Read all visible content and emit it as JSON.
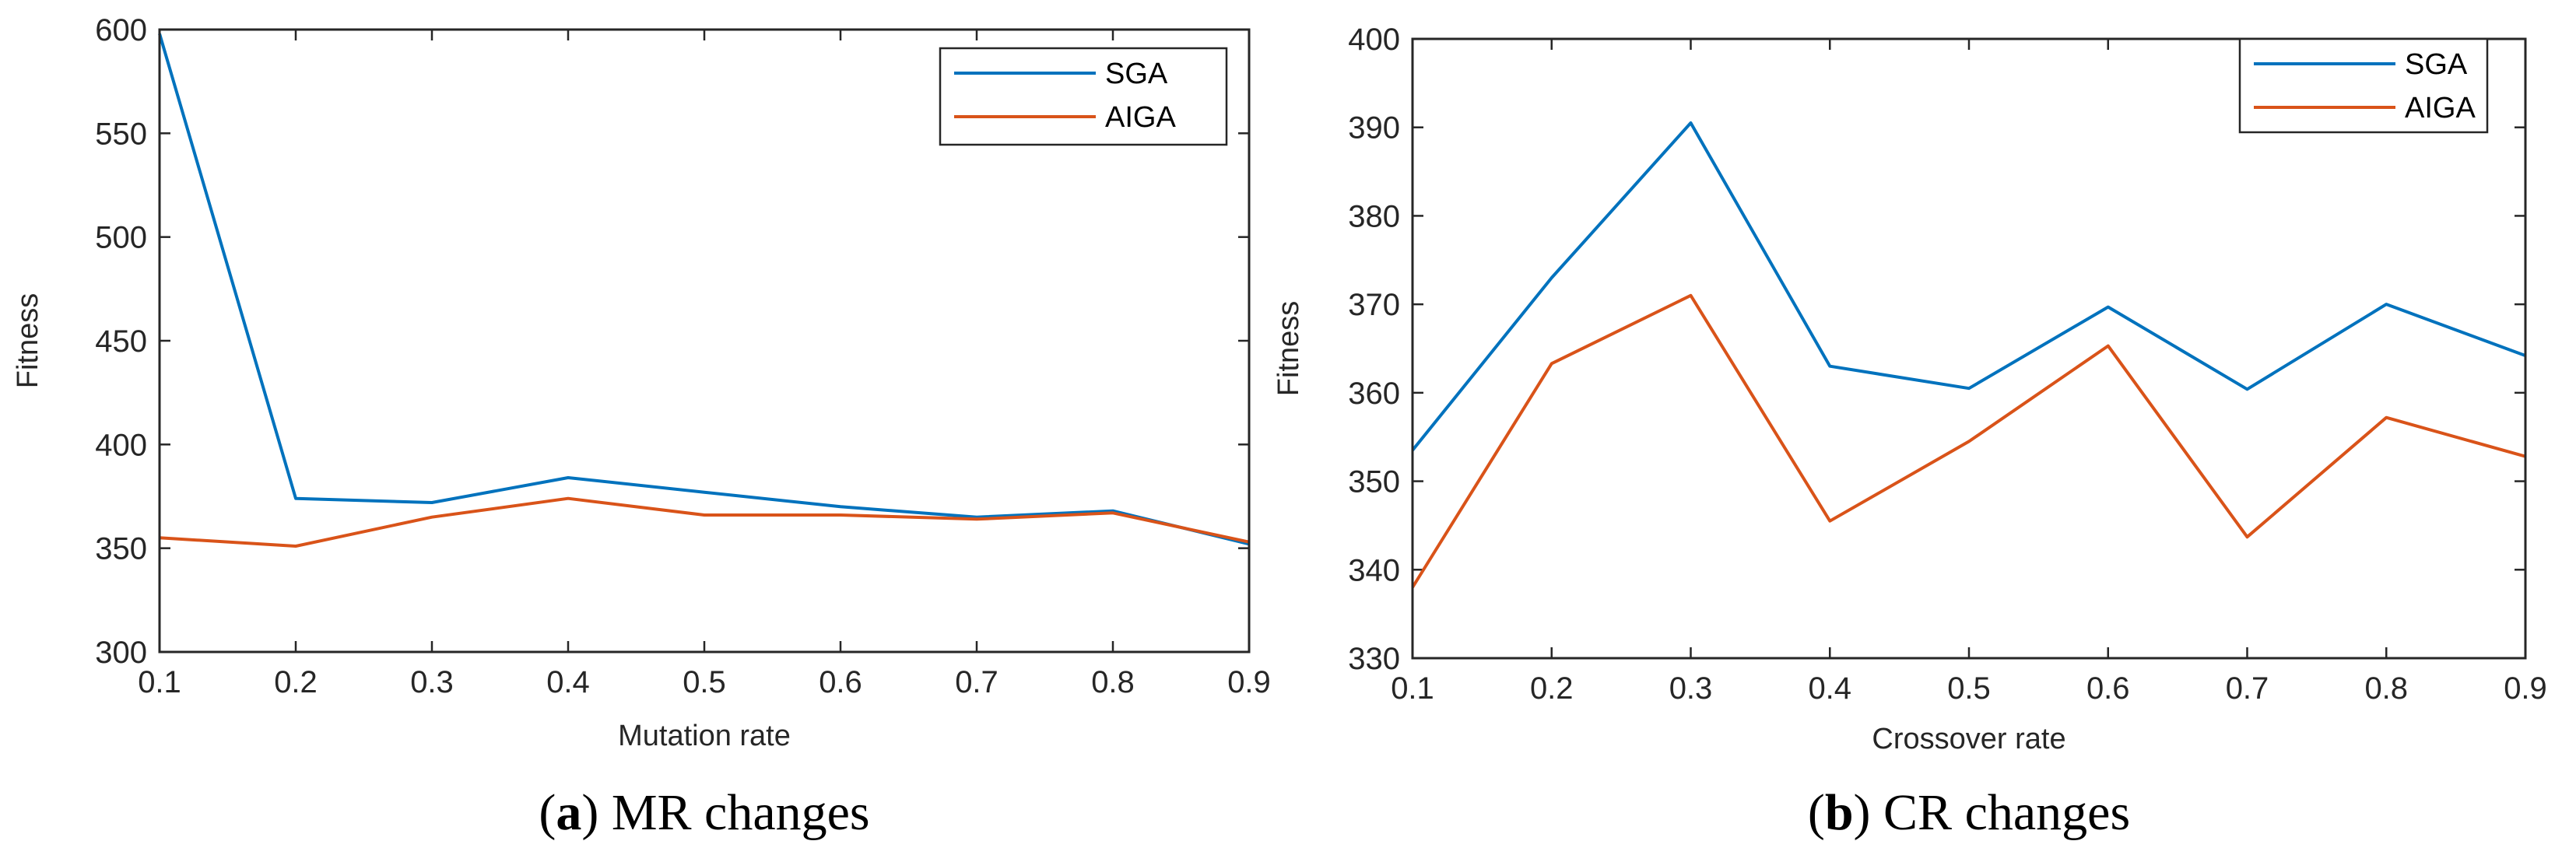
{
  "chart_data": [
    {
      "type": "line",
      "panel_id": "a",
      "caption_letter": "a",
      "caption_text": " MR changes",
      "xlabel": "Mutation rate",
      "ylabel": "Fitness",
      "xlim": [
        0.1,
        0.9
      ],
      "ylim": [
        300,
        600
      ],
      "x": [
        0.1,
        0.2,
        0.3,
        0.4,
        0.5,
        0.6,
        0.7,
        0.8,
        0.9
      ],
      "xticks": [
        "0.1",
        "0.2",
        "0.3",
        "0.4",
        "0.5",
        "0.6",
        "0.7",
        "0.8",
        "0.9"
      ],
      "yticks": [
        "300",
        "350",
        "400",
        "450",
        "500",
        "550",
        "600"
      ],
      "legend_position": "top-right",
      "series": [
        {
          "name": "SGA",
          "color": "#0072BD",
          "values": [
            598,
            374,
            372,
            384,
            377,
            370,
            365,
            368,
            352
          ]
        },
        {
          "name": "AIGA",
          "color": "#D95319",
          "values": [
            355,
            351,
            365,
            374,
            366,
            366,
            364,
            367,
            353
          ]
        }
      ]
    },
    {
      "type": "line",
      "panel_id": "b",
      "caption_letter": "b",
      "caption_text": " CR changes",
      "xlabel": "Crossover rate",
      "ylabel": "Fitness",
      "xlim": [
        0.1,
        0.9
      ],
      "ylim": [
        330,
        400
      ],
      "x": [
        0.1,
        0.2,
        0.3,
        0.4,
        0.5,
        0.6,
        0.7,
        0.8,
        0.9
      ],
      "xticks": [
        "0.1",
        "0.2",
        "0.3",
        "0.4",
        "0.5",
        "0.6",
        "0.7",
        "0.8",
        "0.9"
      ],
      "yticks": [
        "330",
        "340",
        "350",
        "360",
        "370",
        "380",
        "390",
        "400"
      ],
      "legend_position": "top-right",
      "series": [
        {
          "name": "SGA",
          "color": "#0072BD",
          "values": [
            353.5,
            373,
            390.5,
            363,
            360.5,
            369.7,
            360.4,
            370,
            364.2
          ]
        },
        {
          "name": "AIGA",
          "color": "#D95319",
          "values": [
            338,
            363.3,
            371,
            345.5,
            354.5,
            365.3,
            343.7,
            357.2,
            352.8
          ]
        }
      ]
    }
  ]
}
